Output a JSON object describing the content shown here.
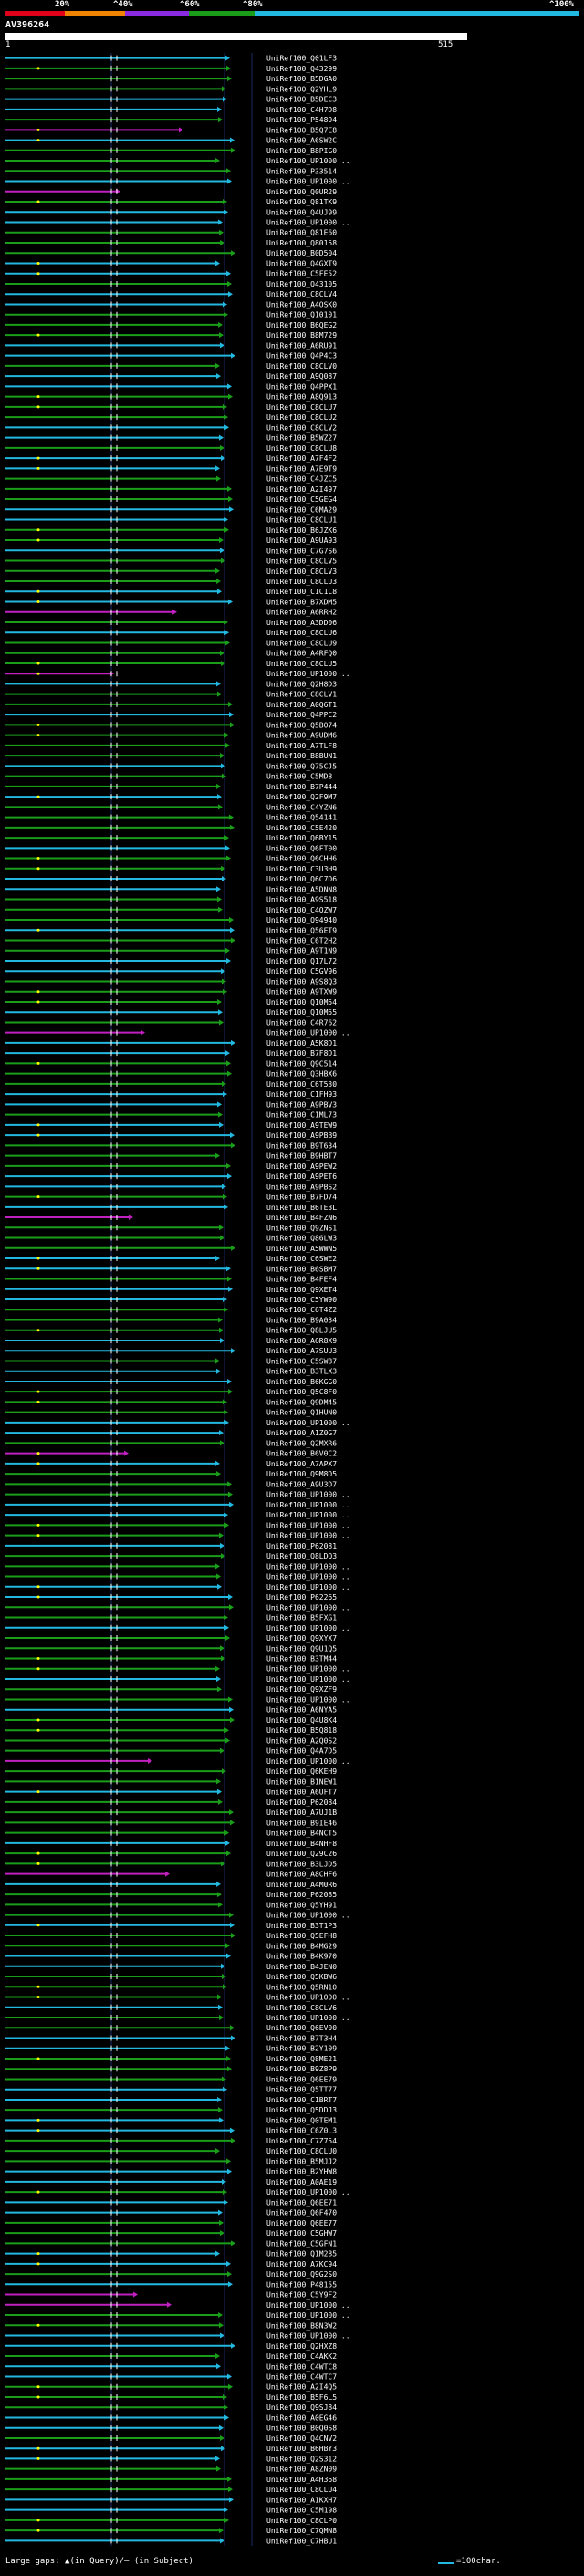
{
  "header": {
    "percent_labels": [
      "20%",
      "^40%",
      "^60%",
      "^80%",
      "^100%"
    ],
    "color_scale": [
      "#e0001a",
      "#f08400",
      "#8a2be2",
      "#1a9e1a",
      "#22b8e0"
    ],
    "query_id": "AV396264",
    "ruler_start": "1",
    "ruler_end": "515"
  },
  "hits": [
    "UniRef100_Q01LF3",
    "UniRef100_Q43299",
    "UniRef100_B5DGA0",
    "UniRef100_Q2YHL9",
    "UniRef100_B5DEC3",
    "UniRef100_C4H7D8",
    "UniRef100_P54894",
    "UniRef100_B5Q7E8",
    "UniRef100_A6SW2C",
    "UniRef100_B8PIG0",
    "UniRef100_UP1000...",
    "UniRef100_P33514",
    "UniRef100_UP1000...",
    "UniRef100_Q0UR29",
    "UniRef100_Q81TK9",
    "UniRef100_Q4UJ99",
    "UniRef100_UP1000...",
    "UniRef100_Q81E60",
    "UniRef100_Q80158",
    "UniRef100_B0D504",
    "UniRef100_Q4GXT9",
    "UniRef100_C5FE52",
    "UniRef100_Q43105",
    "UniRef100_C8CLV4",
    "UniRef100_A4OSK0",
    "UniRef100_Q10101",
    "UniRef100_B6QEG2",
    "UniRef100_B8M729",
    "UniRef100_A6RU91",
    "UniRef100_Q4P4C3",
    "UniRef100_C8CLV0",
    "UniRef100_A9Q087",
    "UniRef100_Q4PPX1",
    "UniRef100_A8Q913",
    "UniRef100_C8CLU7",
    "UniRef100_C8CLU2",
    "UniRef100_C8CLV2",
    "UniRef100_B5WZ27",
    "UniRef100_C8CLU8",
    "UniRef100_A7F4F2",
    "UniRef100_A7E9T9",
    "UniRef100_C4JZC5",
    "UniRef100_A2I497",
    "UniRef100_C5GEG4",
    "UniRef100_C6MA29",
    "UniRef100_C8CLU1",
    "UniRef100_B6JZK6",
    "UniRef100_A9UA93",
    "UniRef100_C7G7S6",
    "UniRef100_C8CLV5",
    "UniRef100_C8CLV3",
    "UniRef100_C8CLU3",
    "UniRef100_C1C1C8",
    "UniRef100_B7XDM5",
    "UniRef100_A6RRH2",
    "UniRef100_A3DD06",
    "UniRef100_C8CLU6",
    "UniRef100_C8CLU9",
    "UniRef100_A4RFQ0",
    "UniRef100_C8CLU5",
    "UniRef100_UP1000...",
    "UniRef100_Q2H8D3",
    "UniRef100_C8CLV1",
    "UniRef100_A0Q6T1",
    "UniRef100_Q4PPC2",
    "UniRef100_Q5B074",
    "UniRef100_A9UDM6",
    "UniRef100_A7TLF8",
    "UniRef100_B8BUN1",
    "UniRef100_Q75CJ5",
    "UniRef100_C5MD8",
    "UniRef100_B7P444",
    "UniRef100_Q2F9M7",
    "UniRef100_C4YZN6",
    "UniRef100_Q54141",
    "UniRef100_C5E420",
    "UniRef100_Q6BY15",
    "UniRef100_Q6FT00",
    "UniRef100_Q6CHH6",
    "UniRef100_C3U3H9",
    "UniRef100_Q6C7D6",
    "UniRef100_A5DNN8",
    "UniRef100_A9S518",
    "UniRef100_C4QZW7",
    "UniRef100_Q94940",
    "UniRef100_Q56ET9",
    "UniRef100_C6T2H2",
    "UniRef100_A9T1N9",
    "UniRef100_Q17L72",
    "UniRef100_C5GV96",
    "UniRef100_A9S8Q3",
    "UniRef100_A9TXW9",
    "UniRef100_Q10M54",
    "UniRef100_Q10M55",
    "UniRef100_C4R762",
    "UniRef100_UP1000...",
    "UniRef100_A5K8D1",
    "UniRef100_B7F8D1",
    "UniRef100_Q9C514",
    "UniRef100_Q3HBX6",
    "UniRef100_C6T530",
    "UniRef100_C1FH93",
    "UniRef100_A9PBV3",
    "UniRef100_C1ML73",
    "UniRef100_A9TEW9",
    "UniRef100_A9PBB9",
    "UniRef100_B9T634",
    "UniRef100_B9HBT7",
    "UniRef100_A9PEW2",
    "UniRef100_A9PET6",
    "UniRef100_A9PBS2",
    "UniRef100_B7FD74",
    "UniRef100_B6TE3L",
    "UniRef100_B4FZN6",
    "UniRef100_Q9ZNS1",
    "UniRef100_Q86LW3",
    "UniRef100_A5WWN5",
    "UniRef100_C6SWE2",
    "UniRef100_B6SBM7",
    "UniRef100_B4FEF4",
    "UniRef100_Q9XET4",
    "UniRef100_C5YW90",
    "UniRef100_C6T4Z2",
    "UniRef100_B9A034",
    "UniRef100_Q8LJU5",
    "UniRef100_A6R8X9",
    "UniRef100_A7SUU3",
    "UniRef100_C5SW87",
    "UniRef100_B3TLX3",
    "UniRef100_B6KGG0",
    "UniRef100_Q5C8F0",
    "UniRef100_Q9DM45",
    "UniRef100_Q1HUN0",
    "UniRef100_UP1000...",
    "UniRef100_A1Z0G7",
    "UniRef100_Q2MXR6",
    "UniRef100_B6V0C2",
    "UniRef100_A7APX7",
    "UniRef100_Q9M8D5",
    "UniRef100_A9U3D7",
    "UniRef100_UP1000...",
    "UniRef100_UP1000...",
    "UniRef100_UP1000...",
    "UniRef100_UP1000...",
    "UniRef100_UP1000...",
    "UniRef100_P62081",
    "UniRef100_Q8LDQ3",
    "UniRef100_UP1000...",
    "UniRef100_UP1000...",
    "UniRef100_UP1000...",
    "UniRef100_P62265",
    "UniRef100_UP1000...",
    "UniRef100_B5FXG1",
    "UniRef100_UP1000...",
    "UniRef100_Q9XYX7",
    "UniRef100_Q9U1Q5",
    "UniRef100_B3TM44",
    "UniRef100_UP1000...",
    "UniRef100_UP1000...",
    "UniRef100_Q9XZF9",
    "UniRef100_UP1000...",
    "UniRef100_A6NYA5",
    "UniRef100_Q4U8K4",
    "UniRef100_B5Q818",
    "UniRef100_A2Q0S2",
    "UniRef100_Q4A7D5",
    "UniRef100_UP1000...",
    "UniRef100_Q6KEH9",
    "UniRef100_B1NEW1",
    "UniRef100_A6UFT7",
    "UniRef100_P62084",
    "UniRef100_A7UJ1B",
    "UniRef100_B9IE46",
    "UniRef100_B4NCT5",
    "UniRef100_B4NHF8",
    "UniRef100_Q29C26",
    "UniRef100_B3LJD5",
    "UniRef100_A8CHF6",
    "UniRef100_A4M0R6",
    "UniRef100_P62085",
    "UniRef100_Q5YH91",
    "UniRef100_UP1000...",
    "UniRef100_B3T1P3",
    "UniRef100_Q5EFH8",
    "UniRef100_B4MG29",
    "UniRef100_B4K970",
    "UniRef100_B4JEN0",
    "UniRef100_Q5KBW6",
    "UniRef100_Q5RN10",
    "UniRef100_UP1000...",
    "UniRef100_C8CLV6",
    "UniRef100_UP1000...",
    "UniRef100_Q6EV00",
    "UniRef100_B7T3H4",
    "UniRef100_B2Y109",
    "UniRef100_Q8ME21",
    "UniRef100_B9Z8P9",
    "UniRef100_Q6EE79",
    "UniRef100_Q5TT77",
    "UniRef100_C1BRT7",
    "UniRef100_Q5DDJ3",
    "UniRef100_Q0TEM1",
    "UniRef100_C6Z0L3",
    "UniRef100_C7Z754",
    "UniRef100_C8CLU0",
    "UniRef100_B5MJJ2",
    "UniRef100_B2YHW8",
    "UniRef100_A0AE19",
    "UniRef100_UP1000...",
    "UniRef100_Q6EE71",
    "UniRef100_Q6F470",
    "UniRef100_Q6EE77",
    "UniRef100_C5GHW7",
    "UniRef100_C5GFN1",
    "UniRef100_Q1M285",
    "UniRef100_A7KC94",
    "UniRef100_Q9G2S0",
    "UniRef100_P48155",
    "UniRef100_C5Y9F2",
    "UniRef100_UP1000...",
    "UniRef100_UP1000...",
    "UniRef100_B8N3W2",
    "UniRef100_UP1000...",
    "UniRef100_Q2HXZ8",
    "UniRef100_C4AKK2",
    "UniRef100_C4WTC8",
    "UniRef100_C4WTC7",
    "UniRef100_A2I4Q5",
    "UniRef100_B5F6L5",
    "UniRef100_Q9SJ84",
    "UniRef100_A0EG46",
    "UniRef100_B0Q0S8",
    "UniRef100_Q4CNV2",
    "UniRef100_B6HBY3",
    "UniRef100_Q2S312",
    "UniRef100_A8ZN09",
    "UniRef100_A4H368",
    "UniRef100_C8CLU4",
    "UniRef100_A1KXH7",
    "UniRef100_C5M198",
    "UniRef100_C8CLP0",
    "UniRef100_C7QMN8",
    "UniRef100_C7HBU1"
  ],
  "footer": {
    "legend_text": "Large gaps: ▲(in Query)/— (in Subject)",
    "scale_text": "=100char."
  }
}
